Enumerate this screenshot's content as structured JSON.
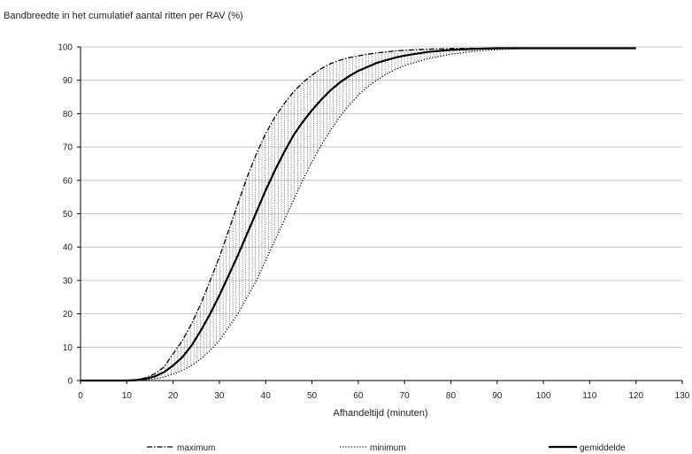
{
  "chart_data": {
    "type": "line",
    "title": "Bandbreedte in het cumulatief aantal ritten per RAV (%)",
    "xlabel": "Afhandeltijd (minuten)",
    "ylabel": "",
    "xlim": [
      0,
      130
    ],
    "ylim": [
      0,
      100
    ],
    "xticks": [
      0,
      10,
      20,
      30,
      40,
      50,
      60,
      70,
      80,
      90,
      100,
      110,
      120,
      130
    ],
    "yticks": [
      0,
      10,
      20,
      30,
      40,
      50,
      60,
      70,
      80,
      90,
      100
    ],
    "grid": "horizontal",
    "legend": "bottom",
    "band_hatching": true,
    "x": [
      0,
      10,
      12,
      14,
      16,
      18,
      20,
      22,
      24,
      26,
      28,
      30,
      32,
      34,
      36,
      38,
      40,
      42,
      44,
      46,
      48,
      50,
      52,
      54,
      56,
      58,
      60,
      62,
      64,
      66,
      68,
      70,
      75,
      80,
      85,
      90,
      95,
      100,
      110,
      120
    ],
    "series": [
      {
        "name": "maximum",
        "style": "dash-dot",
        "values": [
          0,
          0,
          0.3,
          0.8,
          2,
          4,
          8,
          12,
          17,
          23,
          30,
          37,
          45,
          53,
          61,
          68,
          74,
          79,
          83,
          86.5,
          89.3,
          91.5,
          93.5,
          95,
          96,
          96.8,
          97.3,
          97.8,
          98.2,
          98.5,
          98.8,
          99,
          99.3,
          99.5,
          99.6,
          99.6,
          99.6,
          99.6,
          99.6,
          99.6
        ]
      },
      {
        "name": "minimum",
        "style": "dotted",
        "values": [
          0,
          0,
          0,
          0.2,
          0.5,
          1,
          2,
          3,
          4.5,
          6.5,
          9,
          12,
          16,
          20,
          25,
          30,
          36,
          42,
          48,
          54,
          60,
          65.5,
          70.5,
          75,
          79,
          82.5,
          85.5,
          88,
          90,
          91.8,
          93.2,
          94.4,
          96.5,
          97.8,
          98.7,
          99.2,
          99.5,
          99.6,
          99.6,
          99.6
        ]
      },
      {
        "name": "gemiddelde",
        "style": "solid",
        "values": [
          0,
          0,
          0.1,
          0.5,
          1.2,
          2.5,
          4.5,
          7,
          10.5,
          15,
          20,
          25.5,
          31.5,
          37.5,
          44,
          50.5,
          57,
          63,
          68.5,
          73.5,
          77.5,
          81,
          84.2,
          87,
          89.3,
          91.2,
          92.8,
          94,
          95.2,
          96,
          96.8,
          97.4,
          98.5,
          99.1,
          99.4,
          99.6,
          99.6,
          99.6,
          99.6,
          99.6
        ]
      }
    ]
  }
}
